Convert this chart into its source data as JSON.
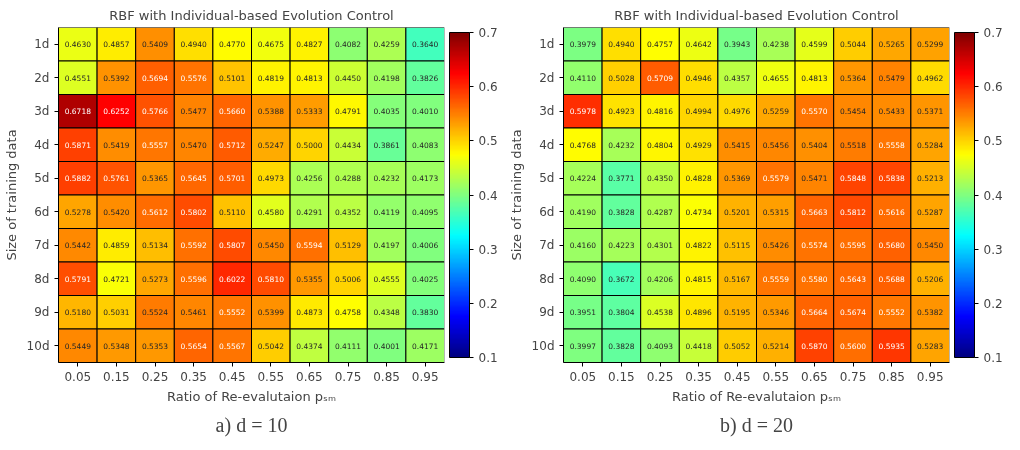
{
  "chart_data": [
    {
      "type": "heatmap",
      "title": "RBF with Individual-based Evolution Control",
      "xlabel": "Ratio of Re-evalutaion pₛₘ",
      "ylabel": "Size of training data",
      "annotations": [
        "a) d = 10"
      ],
      "categories": [
        "0.05",
        "0.15",
        "0.25",
        "0.35",
        "0.45",
        "0.55",
        "0.65",
        "0.75",
        "0.85",
        "0.95"
      ],
      "y_categories": [
        "1d",
        "2d",
        "3d",
        "4d",
        "5d",
        "6d",
        "7d",
        "8d",
        "9d",
        "10d"
      ],
      "cells": [
        [
          0.463,
          0.4857,
          0.5409,
          0.494,
          0.477,
          0.4675,
          0.4827,
          0.4082,
          0.4259,
          0.364
        ],
        [
          0.4551,
          0.5392,
          0.5694,
          0.5576,
          0.5101,
          0.4819,
          0.4813,
          0.445,
          0.4198,
          0.3826
        ],
        [
          0.6718,
          0.6252,
          0.5766,
          0.5477,
          0.566,
          0.5388,
          0.5333,
          0.4791,
          0.4035,
          0.401
        ],
        [
          0.5871,
          0.5419,
          0.5557,
          0.547,
          0.5712,
          0.5247,
          0.5,
          0.4434,
          0.3861,
          0.4083
        ],
        [
          0.5882,
          0.5761,
          0.5365,
          0.5645,
          0.5701,
          0.4973,
          0.4256,
          0.4288,
          0.4232,
          0.4173
        ],
        [
          0.5278,
          0.542,
          0.5612,
          0.5802,
          0.511,
          0.458,
          0.4291,
          0.4352,
          0.4119,
          0.4095
        ],
        [
          0.5442,
          0.4859,
          0.5134,
          0.5592,
          0.5807,
          0.545,
          0.5594,
          0.5129,
          0.4197,
          0.4006
        ],
        [
          0.5791,
          0.4721,
          0.5273,
          0.5596,
          0.6022,
          0.581,
          0.5355,
          0.5006,
          0.4555,
          0.4025
        ],
        [
          0.518,
          0.5031,
          0.5524,
          0.5461,
          0.5552,
          0.5399,
          0.4873,
          0.4758,
          0.4348,
          0.383
        ],
        [
          0.5449,
          0.5348,
          0.5353,
          0.5654,
          0.5567,
          0.5042,
          0.4374,
          0.4111,
          0.4001,
          0.4171
        ]
      ],
      "cell_labels": [
        [
          "0.4630",
          "0.4857",
          "0.5409",
          "0.4940",
          "0.4770",
          "0.4675",
          "0.4827",
          "0.4082",
          "0.4259",
          "0.3640"
        ],
        [
          "0.4551",
          "0.5392",
          "0.5694",
          "0.5576",
          "0.5101",
          "0.4819",
          "0.4813",
          "0.4450",
          "0.4198",
          "0.3826"
        ],
        [
          "0.6718",
          "0.6252",
          "0.5766",
          "0.5477",
          "0.5660",
          "0.5388",
          "0.5333",
          "0.4791",
          "0.4035",
          "0.4010"
        ],
        [
          "0.5871",
          "0.5419",
          "0.5557",
          "0.5470",
          "0.5712",
          "0.5247",
          "0.5000",
          "0.4434",
          "0.3861",
          "0.4083"
        ],
        [
          "0.5882",
          "0.5761",
          "0.5365",
          "0.5645",
          "0.5701",
          "0.4973",
          "0.4256",
          "0.4288",
          "0.4232",
          "0.4173"
        ],
        [
          "0.5278",
          "0.5420",
          "0.5612",
          "0.5802",
          "0.5110",
          "0.4580",
          "0.4291",
          "0.4352",
          "0.4119",
          "0.4095"
        ],
        [
          "0.5442",
          "0.4859",
          "0.5134",
          "0.5592",
          "0.5807",
          "0.5450",
          "0.5594",
          "0.5129",
          "0.4197",
          "0.4006"
        ],
        [
          "0.5791",
          "0.4721",
          "0.5273",
          "0.5596",
          "0.6022",
          "0.5810",
          "0.5355",
          "0.5006",
          "0.4555",
          "0.4025"
        ],
        [
          "0.5180",
          "0.5031",
          "0.5524",
          "0.5461",
          "0.5552",
          "0.5399",
          "0.4873",
          "0.4758",
          "0.4348",
          "0.3830"
        ],
        [
          "0.5449",
          "0.5348",
          "0.5353",
          "0.5654",
          "0.5567",
          "0.5042",
          "0.4374",
          "0.4111",
          "0.4001",
          "0.4171"
        ]
      ],
      "clim": [
        0.1,
        0.7
      ],
      "cticks": [
        0.1,
        0.2,
        0.3,
        0.4,
        0.5,
        0.6,
        0.7
      ]
    },
    {
      "type": "heatmap",
      "title": "RBF with Individual-based Evolution Control",
      "xlabel": "Ratio of Re-evalutaion pₛₘ",
      "ylabel": "Size of training data",
      "annotations": [
        "b) d = 20"
      ],
      "categories": [
        "0.05",
        "0.15",
        "0.25",
        "0.35",
        "0.45",
        "0.55",
        "0.65",
        "0.75",
        "0.85",
        "0.95"
      ],
      "y_categories": [
        "1d",
        "2d",
        "3d",
        "4d",
        "5d",
        "6d",
        "7d",
        "8d",
        "9d",
        "10d"
      ],
      "cells": [
        [
          0.3979,
          0.494,
          0.4757,
          0.4642,
          0.3943,
          0.4238,
          0.4599,
          0.5044,
          0.5265,
          0.5299
        ],
        [
          0.411,
          0.5028,
          0.5709,
          0.4946,
          0.4357,
          0.4655,
          0.4813,
          0.5364,
          0.5479,
          0.4962
        ],
        [
          0.5978,
          0.4923,
          0.4816,
          0.4994,
          0.4976,
          0.5259,
          0.557,
          0.5454,
          0.5433,
          0.5371
        ],
        [
          0.4768,
          0.4232,
          0.4804,
          0.4929,
          0.5415,
          0.5456,
          0.5404,
          0.5518,
          0.5558,
          0.5284
        ],
        [
          0.4224,
          0.3771,
          0.435,
          0.4828,
          0.5369,
          0.5579,
          0.5471,
          0.5848,
          0.5838,
          0.5213
        ],
        [
          0.419,
          0.3828,
          0.4287,
          0.4734,
          0.5201,
          0.5315,
          0.5663,
          0.5812,
          0.5616,
          0.5287
        ],
        [
          0.416,
          0.4223,
          0.4301,
          0.4822,
          0.5115,
          0.5426,
          0.5574,
          0.5595,
          0.568,
          0.545
        ],
        [
          0.409,
          0.3672,
          0.4206,
          0.4815,
          0.5167,
          0.5559,
          0.558,
          0.5643,
          0.5688,
          0.5206
        ],
        [
          0.3951,
          0.3804,
          0.4538,
          0.4896,
          0.5195,
          0.5346,
          0.5664,
          0.5674,
          0.5552,
          0.5382
        ],
        [
          0.3997,
          0.3828,
          0.4093,
          0.4418,
          0.5052,
          0.5214,
          0.587,
          0.56,
          0.5935,
          0.5283
        ]
      ],
      "cell_labels": [
        [
          "0.3979",
          "0.4940",
          "0.4757",
          "0.4642",
          "0.3943",
          "0.4238",
          "0.4599",
          "0.5044",
          "0.5265",
          "0.5299"
        ],
        [
          "0.4110",
          "0.5028",
          "0.5709",
          "0.4946",
          "0.4357",
          "0.4655",
          "0.4813",
          "0.5364",
          "0.5479",
          "0.4962"
        ],
        [
          "0.5978",
          "0.4923",
          "0.4816",
          "0.4994",
          "0.4976",
          "0.5259",
          "0.5570",
          "0.5454",
          "0.5433",
          "0.5371"
        ],
        [
          "0.4768",
          "0.4232",
          "0.4804",
          "0.4929",
          "0.5415",
          "0.5456",
          "0.5404",
          "0.5518",
          "0.5558",
          "0.5284"
        ],
        [
          "0.4224",
          "0.3771",
          "0.4350",
          "0.4828",
          "0.5369",
          "0.5579",
          "0.5471",
          "0.5848",
          "0.5838",
          "0.5213"
        ],
        [
          "0.4190",
          "0.3828",
          "0.4287",
          "0.4734",
          "0.5201",
          "0.5315",
          "0.5663",
          "0.5812",
          "0.5616",
          "0.5287"
        ],
        [
          "0.4160",
          "0.4223",
          "0.4301",
          "0.4822",
          "0.5115",
          "0.5426",
          "0.5574",
          "0.5595",
          "0.5680",
          "0.5450"
        ],
        [
          "0.4090",
          "0.3672",
          "0.4206",
          "0.4815",
          "0.5167",
          "0.5559",
          "0.5580",
          "0.5643",
          "0.5688",
          "0.5206"
        ],
        [
          "0.3951",
          "0.3804",
          "0.4538",
          "0.4896",
          "0.5195",
          "0.5346",
          "0.5664",
          "0.5674",
          "0.5552",
          "0.5382"
        ],
        [
          "0.3997",
          "0.3828",
          "0.4093",
          "0.4418",
          "0.5052",
          "0.5214",
          "0.5870",
          "0.5600",
          "0.5935",
          "0.5283"
        ]
      ],
      "clim": [
        0.1,
        0.7
      ],
      "cticks": [
        0.1,
        0.2,
        0.3,
        0.4,
        0.5,
        0.6,
        0.7
      ]
    }
  ]
}
